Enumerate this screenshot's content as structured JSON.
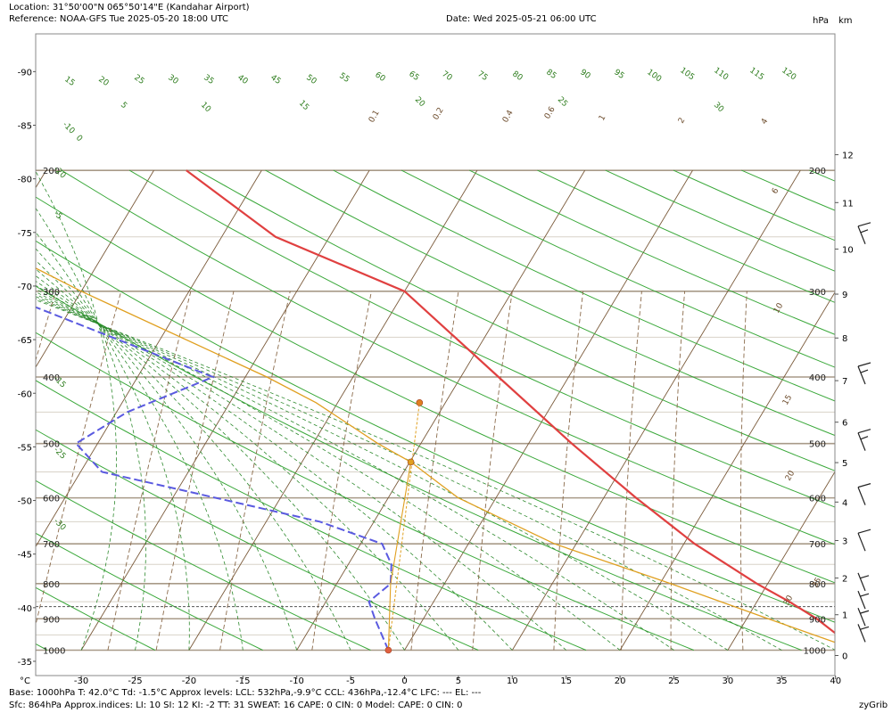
{
  "header": {
    "location": "Location:  31°50'00\"N  065°50'14\"E (Kandahar Airport)",
    "reference": "Reference: NOAA-GFS Tue 2025-05-20 18:00 UTC",
    "date": "Date: Wed 2025-05-21 06:00 UTC",
    "unit_hpa": "hPa",
    "unit_km": "km"
  },
  "footer": {
    "line1": "Base: 1000hPa  T: 42.0°C  Td: -1.5°C     Approx levels:  LCL: 532hPa,-9.9°C   CCL: 436hPa,-12.4°C   LFC: ---   EL: ---",
    "line2": "Sfc: 864hPa      Approx.indices:  LI: 10   SI: 12   KI: -2    TT: 31   SWEAT: 16     CAPE: 0  CIN: 0          Model: CAPE: 0 CIN: 0",
    "brand": "zyGrib",
    "xunit": "°C"
  },
  "colors": {
    "temperature": "#e04040",
    "dewpoint": "#5a5ae0",
    "parcel": "#e0a020",
    "surface_line": "#555555",
    "isobar": "#b0a090",
    "dry_adiabat": "#2e9a2e",
    "moist_adiabat": "#2e7d1e",
    "mixing_ratio": "#8a6a4a"
  },
  "chart_data": {
    "type": "line",
    "title": "",
    "x_axis": {
      "label": "°C",
      "range": [
        -30,
        40
      ],
      "ticks": [
        -30,
        -25,
        -20,
        -15,
        -10,
        -5,
        0,
        5,
        10,
        15,
        20,
        25,
        30,
        35,
        40
      ]
    },
    "y_axis_pressure": {
      "unit": "hPa",
      "range": [
        1000,
        200
      ],
      "ticks": [
        1000,
        900,
        800,
        700,
        600,
        500,
        400,
        300,
        200
      ]
    },
    "y_axis_altitude": {
      "unit": "km",
      "ticks": [
        0,
        1,
        2,
        3,
        4,
        5,
        6,
        7,
        8,
        9,
        10,
        11,
        12
      ]
    },
    "left_axis_ticks": [
      -35,
      -40,
      -45,
      -50,
      -55,
      -60,
      -65,
      -70,
      -75,
      -80,
      -85,
      -90
    ],
    "surface_pressure_hpa": 864,
    "series": [
      {
        "name": "temperature",
        "points": [
          {
            "p": 1000,
            "t": 42.0
          },
          {
            "p": 900,
            "t": 36.5
          },
          {
            "p": 850,
            "t": 33.0
          },
          {
            "p": 800,
            "t": 29.0
          },
          {
            "p": 700,
            "t": 21.0
          },
          {
            "p": 600,
            "t": 13.0
          },
          {
            "p": 500,
            "t": 4.0
          },
          {
            "p": 400,
            "t": -6.5
          },
          {
            "p": 300,
            "t": -20.0
          },
          {
            "p": 250,
            "t": -35.0
          },
          {
            "p": 200,
            "t": -47.0
          }
        ]
      },
      {
        "name": "dewpoint",
        "points": [
          {
            "p": 1000,
            "t": -1.5
          },
          {
            "p": 900,
            "t": -4.5
          },
          {
            "p": 850,
            "t": -6.0
          },
          {
            "p": 800,
            "t": -5.0
          },
          {
            "p": 750,
            "t": -6.0
          },
          {
            "p": 700,
            "t": -8.0
          },
          {
            "p": 650,
            "t": -15.0
          },
          {
            "p": 600,
            "t": -26.0
          },
          {
            "p": 550,
            "t": -38.0
          },
          {
            "p": 500,
            "t": -42.0
          },
          {
            "p": 450,
            "t": -39.0
          },
          {
            "p": 400,
            "t": -33.0
          },
          {
            "p": 300,
            "t": -58.0
          },
          {
            "p": 250,
            "t": -65.0
          },
          {
            "p": 200,
            "t": -72.0
          }
        ]
      },
      {
        "name": "parcel",
        "points": [
          {
            "p": 1000,
            "t": 42.0
          },
          {
            "p": 900,
            "t": 32.0
          },
          {
            "p": 800,
            "t": 21.0
          },
          {
            "p": 700,
            "t": 8.0
          },
          {
            "p": 600,
            "t": -3.5
          },
          {
            "p": 532,
            "t": -9.9
          },
          {
            "p": 500,
            "t": -14.0
          },
          {
            "p": 436,
            "t": -22.0
          },
          {
            "p": 400,
            "t": -28.0
          },
          {
            "p": 300,
            "t": -50.0
          },
          {
            "p": 250,
            "t": -63.0
          },
          {
            "p": 200,
            "t": -75.0
          }
        ]
      },
      {
        "name": "parcel_dewpoint",
        "points": [
          {
            "p": 1000,
            "t": -1.5
          },
          {
            "p": 800,
            "t": -5.0
          },
          {
            "p": 650,
            "t": -7.5
          },
          {
            "p": 532,
            "t": -9.9
          }
        ]
      },
      {
        "name": "ccl_line",
        "points": [
          {
            "p": 1000,
            "t": -1.5
          },
          {
            "p": 436,
            "t": -12.4
          }
        ]
      }
    ],
    "markers": [
      {
        "name": "surface",
        "p": 1000,
        "t": -1.5,
        "color": "#e06040"
      },
      {
        "name": "lcl",
        "p": 532,
        "t": -9.9,
        "color": "#e0a020"
      },
      {
        "name": "ccl",
        "p": 436,
        "t": -12.4,
        "color": "#e08020"
      },
      {
        "name": "surface_temperature",
        "p": 1000,
        "t": 42.0,
        "color": "#e06040"
      }
    ],
    "mixing_ratio_labels": [
      "0.1",
      "0.2",
      "0.4",
      "0.6",
      "1",
      "2",
      "4",
      "6",
      "10",
      "15",
      "20",
      "30",
      "35"
    ],
    "dry_adiabat_labels": [
      "15",
      "20",
      "25",
      "30",
      "35",
      "40",
      "45",
      "50",
      "55",
      "60",
      "65",
      "70",
      "75",
      "80",
      "85",
      "90",
      "95",
      "100",
      "105",
      "110",
      "115",
      "120"
    ],
    "moist_adiabat_labels": [
      "5",
      "10",
      "15",
      "20",
      "25",
      "30",
      "-10",
      "-5",
      "0",
      "-20",
      "-15",
      "-25",
      "-30"
    ],
    "wind_barbs": [
      {
        "p": 250,
        "barb": "half-long"
      },
      {
        "p": 400,
        "barb": "long-half"
      },
      {
        "p": 500,
        "barb": "long-half"
      },
      {
        "p": 600,
        "barb": "long"
      },
      {
        "p": 700,
        "barb": "long"
      },
      {
        "p": 800,
        "barb": "short"
      },
      {
        "p": 850,
        "barb": "short"
      },
      {
        "p": 900,
        "barb": "short"
      },
      {
        "p": 950,
        "barb": "short"
      }
    ]
  }
}
